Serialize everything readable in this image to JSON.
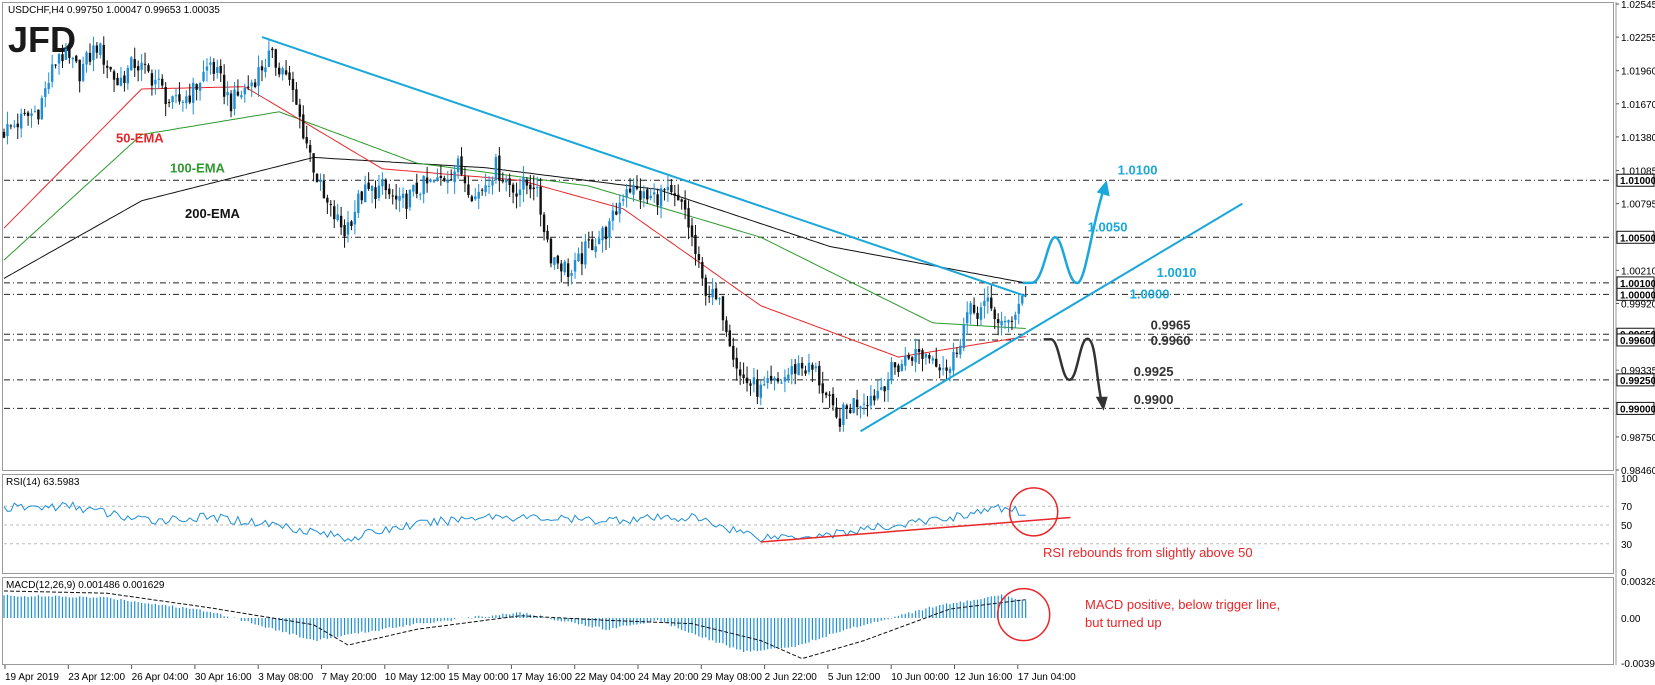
{
  "header": {
    "main": "USDCHF,H4  0.99750 1.00047 0.99653 1.00035",
    "rsi": "RSI(14) 63.5983",
    "macd": "MACD(12,26,9) 0.001486 0.001629"
  },
  "logo": "JFD",
  "colors": {
    "up_candle": "#1e8fd6",
    "down_candle": "#111111",
    "ema50": "#e8262a",
    "ema100": "#2e9a2e",
    "ema200": "#111111",
    "trendline": "#1aa7d9",
    "bull_scenario": "#1aa7d9",
    "bear_scenario": "#333333",
    "rsi_line": "#1e8fd6",
    "annotation": "#e8262a"
  },
  "chart_data": [
    {
      "type": "candlestick",
      "title": "USDCHF,H4",
      "ylim": [
        0.9846,
        1.02545
      ],
      "y_ticks": [
        "1.02545",
        "1.02255",
        "1.01960",
        "1.01670",
        "1.01380",
        "1.01085",
        "1.00795",
        "1.00210",
        "0.99920",
        "0.99335",
        "0.98750",
        "0.98460"
      ],
      "y_tick_values": [
        1.02545,
        1.02255,
        1.0196,
        1.0167,
        1.0138,
        1.01085,
        1.00795,
        1.0021,
        0.9992,
        0.99335,
        0.9875,
        0.9846
      ],
      "x_labels": [
        "19 Apr 2019",
        "23 Apr 12:00",
        "26 Apr 04:00",
        "30 Apr 16:00",
        "3 May 08:00",
        "7 May 20:00",
        "10 May 12:00",
        "15 May 00:00",
        "17 May 16:00",
        "22 May 04:00",
        "24 May 20:00",
        "29 May 08:00",
        "2 Jun 22:00",
        "5 Jun 12:00",
        "10 Jun 00:00",
        "12 Jun 16:00",
        "17 Jun 04:00"
      ],
      "ohlc_anchors": [
        [
          0,
          1.0143
        ],
        [
          10,
          1.0162
        ],
        [
          16,
          1.0212
        ],
        [
          22,
          1.0195
        ],
        [
          27,
          1.0218
        ],
        [
          33,
          1.0185
        ],
        [
          38,
          1.0203
        ],
        [
          44,
          1.0188
        ],
        [
          49,
          1.0165
        ],
        [
          55,
          1.0178
        ],
        [
          60,
          1.0203
        ],
        [
          66,
          1.0168
        ],
        [
          71,
          1.0182
        ],
        [
          77,
          1.0208
        ],
        [
          82,
          1.0195
        ],
        [
          88,
          1.0133
        ],
        [
          93,
          1.0082
        ],
        [
          99,
          1.0055
        ],
        [
          104,
          1.0088
        ],
        [
          110,
          1.0093
        ],
        [
          115,
          1.0078
        ],
        [
          121,
          1.0094
        ],
        [
          126,
          1.0098
        ],
        [
          132,
          1.0112
        ],
        [
          137,
          1.0085
        ],
        [
          143,
          1.0112
        ],
        [
          148,
          1.0092
        ],
        [
          154,
          1.0098
        ],
        [
          159,
          1.0035
        ],
        [
          165,
          1.0018
        ],
        [
          170,
          1.0043
        ],
        [
          176,
          1.0058
        ],
        [
          181,
          1.0096
        ],
        [
          187,
          1.0083
        ],
        [
          192,
          1.0089
        ],
        [
          198,
          1.0073
        ],
        [
          203,
          1.001
        ],
        [
          209,
          0.9985
        ],
        [
          214,
          0.9928
        ],
        [
          220,
          0.9915
        ],
        [
          225,
          0.9922
        ],
        [
          231,
          0.9938
        ],
        [
          236,
          0.9932
        ],
        [
          242,
          0.9888
        ],
        [
          247,
          0.9905
        ],
        [
          253,
          0.9912
        ],
        [
          258,
          0.9932
        ],
        [
          264,
          0.9948
        ],
        [
          269,
          0.9947
        ],
        [
          275,
          0.9935
        ],
        [
          280,
          0.9982
        ],
        [
          286,
          0.999
        ],
        [
          291,
          0.997
        ],
        [
          297,
          1.00035
        ]
      ],
      "ema_50": [
        [
          0,
          1.0058
        ],
        [
          40,
          1.018
        ],
        [
          70,
          1.0182
        ],
        [
          110,
          1.011
        ],
        [
          150,
          1.01
        ],
        [
          180,
          1.0075
        ],
        [
          220,
          0.999
        ],
        [
          260,
          0.9945
        ],
        [
          297,
          0.9963
        ]
      ],
      "ema_100": [
        [
          0,
          1.003
        ],
        [
          40,
          1.014
        ],
        [
          80,
          1.016
        ],
        [
          120,
          1.0115
        ],
        [
          170,
          1.0095
        ],
        [
          220,
          1.005
        ],
        [
          270,
          0.9975
        ],
        [
          297,
          0.997
        ]
      ],
      "ema_200": [
        [
          0,
          1.0014
        ],
        [
          40,
          1.0082
        ],
        [
          90,
          1.012
        ],
        [
          140,
          1.0111
        ],
        [
          190,
          1.0092
        ],
        [
          240,
          1.0042
        ],
        [
          297,
          1.001
        ]
      ],
      "trendlines": [
        {
          "from": [
            75,
            1.02255
          ],
          "to": [
            297,
            0.99985
          ]
        },
        {
          "from": [
            249,
            0.988
          ],
          "to": [
            360,
            1.00795
          ]
        }
      ],
      "levels": [
        1.01,
        1.005,
        1.001,
        1.0,
        0.9965,
        0.996,
        0.9925,
        0.99
      ],
      "price_tags": [
        "1.01000",
        "1.00500",
        "1.00100",
        "1.00000",
        "0.99650",
        "0.99600",
        "0.99250",
        "0.99000"
      ],
      "annotations": {
        "ema50": "50-EMA",
        "ema100": "100-EMA",
        "ema200": "200-EMA",
        "up_labels": [
          "1.0100",
          "1.0050",
          "1.0010",
          "1.0000"
        ],
        "down_labels": [
          "0.9965",
          "0.9960",
          "0.9925",
          "0.9900"
        ]
      }
    },
    {
      "type": "line",
      "title": "RSI(14)",
      "ylim": [
        0,
        100
      ],
      "y_ticks": [
        100,
        70,
        50,
        30,
        0
      ],
      "value_anchors": [
        [
          0,
          68
        ],
        [
          20,
          70
        ],
        [
          40,
          55
        ],
        [
          60,
          58
        ],
        [
          80,
          50
        ],
        [
          100,
          36
        ],
        [
          115,
          48
        ],
        [
          140,
          60
        ],
        [
          170,
          55
        ],
        [
          200,
          58
        ],
        [
          220,
          37
        ],
        [
          240,
          40
        ],
        [
          270,
          55
        ],
        [
          290,
          68
        ],
        [
          297,
          63.5983
        ]
      ],
      "trendline": {
        "from": [
          220,
          32
        ],
        "to": [
          310,
          58
        ]
      },
      "note": "RSI rebounds from slightly above 50"
    },
    {
      "type": "bar",
      "title": "MACD(12,26,9)",
      "ylim": [
        -0.003992,
        0.003284
      ],
      "y_ticks": [
        "0.003284",
        "0.00",
        "-0.003992"
      ],
      "hist_anchors": [
        [
          0,
          0.002
        ],
        [
          30,
          0.0018
        ],
        [
          60,
          0.0006
        ],
        [
          90,
          -0.002
        ],
        [
          120,
          -0.0005
        ],
        [
          150,
          0.0005
        ],
        [
          175,
          -0.001
        ],
        [
          190,
          -0.0002
        ],
        [
          215,
          -0.003
        ],
        [
          230,
          -0.0025
        ],
        [
          245,
          -0.001
        ],
        [
          270,
          0.001
        ],
        [
          290,
          0.002
        ],
        [
          297,
          0.001486
        ]
      ],
      "signal_anchors": [
        [
          0,
          0.0024
        ],
        [
          30,
          0.0022
        ],
        [
          60,
          0.0009
        ],
        [
          90,
          -0.0006
        ],
        [
          100,
          -0.0024
        ],
        [
          120,
          -0.001
        ],
        [
          150,
          0.0002
        ],
        [
          175,
          -0.0002
        ],
        [
          200,
          -0.0005
        ],
        [
          220,
          -0.002
        ],
        [
          232,
          -0.0036
        ],
        [
          250,
          -0.002
        ],
        [
          275,
          0.0008
        ],
        [
          297,
          0.001629
        ]
      ],
      "note": [
        "MACD positive, below trigger line,",
        "but turned up"
      ]
    }
  ]
}
